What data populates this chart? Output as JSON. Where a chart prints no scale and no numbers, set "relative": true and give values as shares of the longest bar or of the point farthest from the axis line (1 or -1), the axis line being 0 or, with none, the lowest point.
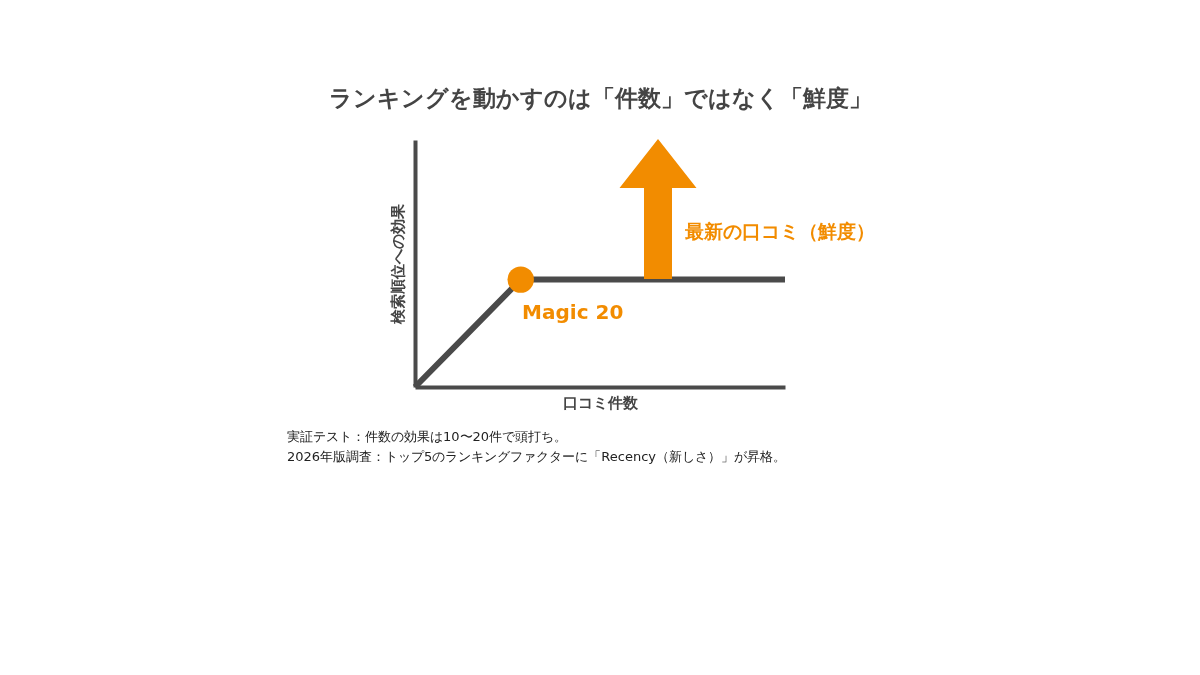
{
  "chart_data": {
    "type": "line",
    "relative": true,
    "title": "ランキングを動かすのは「件数」ではなく「鮮度」",
    "xlabel": "口コミ件数",
    "ylabel": "検索順位への効果",
    "categories": [
      null,
      null,
      null,
      null,
      null,
      null,
      null,
      null
    ],
    "series": [
      {
        "color": "#4a4a4a",
        "values": [
          0,
          0.5,
          1,
          1,
          1,
          1,
          1,
          1
        ]
      }
    ],
    "annotations": [
      {
        "text": "Magic 20",
        "y": 1
      },
      "最新の口コミ（鮮度）",
      "実証テスト：件数の効果は10〜20件で頭打ち。",
      "2026年版調査：トップ5のランキングファクターに「Recency（新しさ）」が昇格。"
    ],
    "grid": false
  }
}
